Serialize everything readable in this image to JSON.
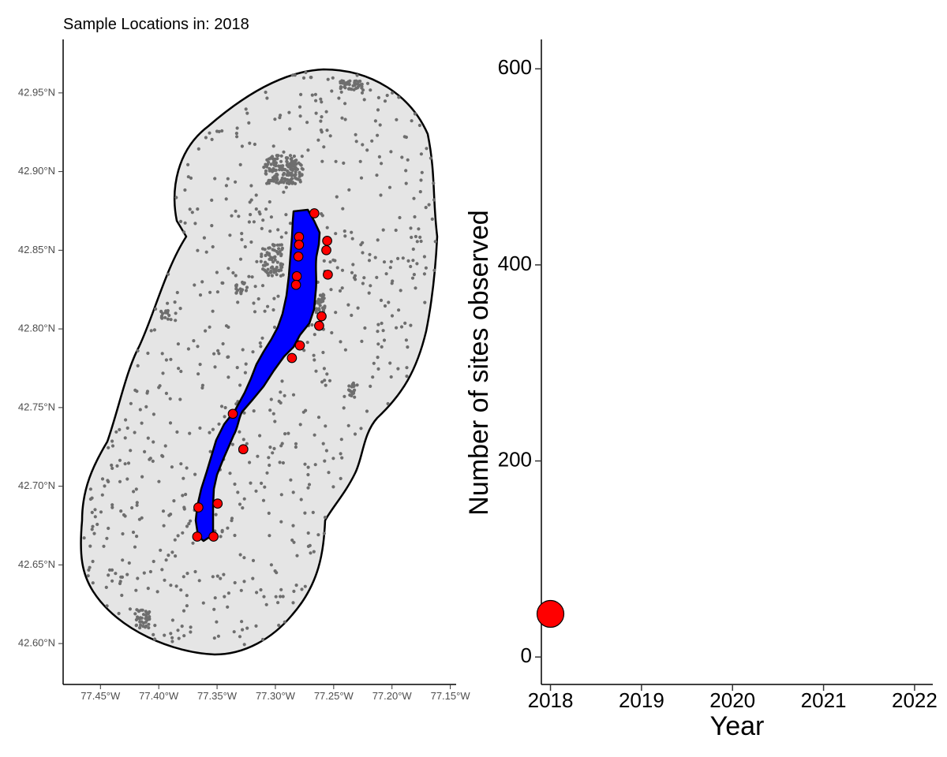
{
  "chart_data": [
    {
      "type": "map",
      "title": "Sample Locations in: 2018",
      "x_ticks": [
        "77.45°W",
        "77.40°W",
        "77.35°W",
        "77.30°W",
        "77.25°W",
        "77.20°W",
        "77.15°W"
      ],
      "x_tick_values": [
        -77.45,
        -77.4,
        -77.35,
        -77.3,
        -77.25,
        -77.2,
        -77.15
      ],
      "y_ticks": [
        "42.60°N",
        "42.65°N",
        "42.70°N",
        "42.75°N",
        "42.80°N",
        "42.85°N",
        "42.90°N",
        "42.95°N"
      ],
      "y_tick_values": [
        42.6,
        42.65,
        42.7,
        42.75,
        42.8,
        42.85,
        42.9,
        42.95
      ],
      "xlim": [
        -77.482,
        -77.145
      ],
      "ylim": [
        42.574,
        42.984
      ],
      "colors": {
        "buffer_fill": "#e5e5e5",
        "background_points": "#6e6e6e",
        "lake_fill": "#0000ff",
        "sample_points": "#ff0000",
        "outline": "#000000"
      },
      "sample_sites": [
        {
          "lon": -77.2666,
          "lat": 42.8735
        },
        {
          "lon": -77.2797,
          "lat": 42.8585
        },
        {
          "lon": -77.2556,
          "lat": 42.856
        },
        {
          "lon": -77.2797,
          "lat": 42.8535
        },
        {
          "lon": -77.2563,
          "lat": 42.85
        },
        {
          "lon": -77.2803,
          "lat": 42.846
        },
        {
          "lon": -77.255,
          "lat": 42.8345
        },
        {
          "lon": -77.2816,
          "lat": 42.8335
        },
        {
          "lon": -77.2823,
          "lat": 42.828
        },
        {
          "lon": -77.2604,
          "lat": 42.808
        },
        {
          "lon": -77.2625,
          "lat": 42.802
        },
        {
          "lon": -77.279,
          "lat": 42.7895
        },
        {
          "lon": -77.2858,
          "lat": 42.7815
        },
        {
          "lon": -77.3365,
          "lat": 42.746
        },
        {
          "lon": -77.3275,
          "lat": 42.7235
        },
        {
          "lon": -77.3495,
          "lat": 42.689
        },
        {
          "lon": -77.366,
          "lat": 42.6865
        },
        {
          "lon": -77.353,
          "lat": 42.668
        },
        {
          "lon": -77.367,
          "lat": 42.668
        }
      ]
    },
    {
      "type": "scatter",
      "xlabel": "Year",
      "ylabel": "Number of sites observed",
      "x_ticks": [
        "2018",
        "2019",
        "2020",
        "2021",
        "2022"
      ],
      "y_ticks": [
        "0",
        "200",
        "400",
        "600"
      ],
      "xlim": [
        2017.9,
        2022.2
      ],
      "ylim": [
        -28,
        630
      ],
      "series": [
        {
          "x": [
            2018
          ],
          "y": [
            44
          ],
          "color": "#ff0000"
        }
      ]
    }
  ]
}
